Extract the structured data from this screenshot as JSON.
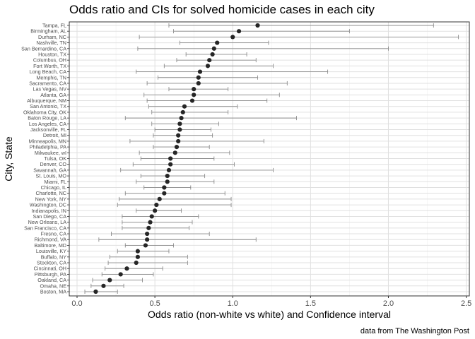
{
  "chart_data": {
    "type": "scatter",
    "title": "Odds ratio and CIs for solved homicide cases in each city",
    "xlabel": "Odds ratio (non-white vs white) and Confidence interval",
    "ylabel": "City, State",
    "caption": "data from The Washington Post",
    "xlim": [
      -0.05,
      2.52
    ],
    "xticks": [
      0.0,
      0.5,
      1.0,
      1.5,
      2.0,
      2.5
    ],
    "xtick_labels": [
      "0.0",
      "0.5",
      "1.0",
      "1.5",
      "2.0",
      "2.5"
    ],
    "grid": true,
    "legend": "none",
    "colors": {
      "point": "#262626",
      "errorbar": "#8c8c8c",
      "grid_major": "#e0e0e0",
      "grid_minor": "#efefef",
      "panel_border": "#333333"
    },
    "cities": [
      {
        "city": "Tampa, FL",
        "estimate": 1.16,
        "lower": 0.59,
        "upper": 2.29
      },
      {
        "city": "Birmingham, AL",
        "estimate": 1.04,
        "lower": 0.62,
        "upper": 1.75
      },
      {
        "city": "Durham, NC",
        "estimate": 1.0,
        "lower": 0.4,
        "upper": 2.45
      },
      {
        "city": "Nashville, TN",
        "estimate": 0.9,
        "lower": 0.66,
        "upper": 1.23
      },
      {
        "city": "San Bernardino, CA",
        "estimate": 0.88,
        "lower": 0.39,
        "upper": 2.0
      },
      {
        "city": "Houston, TX",
        "estimate": 0.87,
        "lower": 0.7,
        "upper": 1.09
      },
      {
        "city": "Columbus, OH",
        "estimate": 0.85,
        "lower": 0.64,
        "upper": 1.15
      },
      {
        "city": "Fort Worth, TX",
        "estimate": 0.84,
        "lower": 0.56,
        "upper": 1.26
      },
      {
        "city": "Long Beach, CA",
        "estimate": 0.79,
        "lower": 0.38,
        "upper": 1.61
      },
      {
        "city": "Memphis, TN",
        "estimate": 0.78,
        "lower": 0.52,
        "upper": 1.16
      },
      {
        "city": "Sacramento, CA",
        "estimate": 0.78,
        "lower": 0.45,
        "upper": 1.35
      },
      {
        "city": "Las Vegas, NV",
        "estimate": 0.75,
        "lower": 0.59,
        "upper": 0.97
      },
      {
        "city": "Atlanta, GA",
        "estimate": 0.75,
        "lower": 0.43,
        "upper": 1.3
      },
      {
        "city": "Albuquerque, NM",
        "estimate": 0.74,
        "lower": 0.45,
        "upper": 1.22
      },
      {
        "city": "San Antonio, TX",
        "estimate": 0.69,
        "lower": 0.46,
        "upper": 1.03
      },
      {
        "city": "Oklahoma City, OK",
        "estimate": 0.68,
        "lower": 0.48,
        "upper": 0.97
      },
      {
        "city": "Baton Rouge, LA",
        "estimate": 0.67,
        "lower": 0.31,
        "upper": 1.41
      },
      {
        "city": "Los Angeles, CA",
        "estimate": 0.66,
        "lower": 0.48,
        "upper": 0.91
      },
      {
        "city": "Jacksonville, FL",
        "estimate": 0.66,
        "lower": 0.5,
        "upper": 0.86
      },
      {
        "city": "Detroit, MI",
        "estimate": 0.65,
        "lower": 0.49,
        "upper": 0.87
      },
      {
        "city": "Minneapolis, MN",
        "estimate": 0.65,
        "lower": 0.34,
        "upper": 1.2
      },
      {
        "city": "Philadelphia, PA",
        "estimate": 0.64,
        "lower": 0.49,
        "upper": 0.85
      },
      {
        "city": "Milwaukee, wI",
        "estimate": 0.63,
        "lower": 0.4,
        "upper": 0.98
      },
      {
        "city": "Tulsa, OK",
        "estimate": 0.6,
        "lower": 0.41,
        "upper": 0.88
      },
      {
        "city": "Denver, CO",
        "estimate": 0.6,
        "lower": 0.36,
        "upper": 1.01
      },
      {
        "city": "Savannah, GA",
        "estimate": 0.59,
        "lower": 0.28,
        "upper": 1.26
      },
      {
        "city": "St. Louis, MO",
        "estimate": 0.58,
        "lower": 0.41,
        "upper": 0.82
      },
      {
        "city": "Miami, FL",
        "estimate": 0.58,
        "lower": 0.38,
        "upper": 0.88
      },
      {
        "city": "Chicago, IL",
        "estimate": 0.56,
        "lower": 0.43,
        "upper": 0.73
      },
      {
        "city": "Charlotte, NC",
        "estimate": 0.56,
        "lower": 0.31,
        "upper": 0.95
      },
      {
        "city": "New York, NY",
        "estimate": 0.53,
        "lower": 0.27,
        "upper": 0.99
      },
      {
        "city": "Washington, DC",
        "estimate": 0.51,
        "lower": 0.26,
        "upper": 0.99
      },
      {
        "city": "Indianapolis, IN",
        "estimate": 0.5,
        "lower": 0.38,
        "upper": 0.67
      },
      {
        "city": "San Diego, CA",
        "estimate": 0.48,
        "lower": 0.29,
        "upper": 0.78
      },
      {
        "city": "New Orleans, LA",
        "estimate": 0.47,
        "lower": 0.29,
        "upper": 0.74
      },
      {
        "city": "San Francisco, CA",
        "estimate": 0.46,
        "lower": 0.29,
        "upper": 0.72
      },
      {
        "city": "Fresno, CA",
        "estimate": 0.45,
        "lower": 0.22,
        "upper": 0.85
      },
      {
        "city": "Richmond, VA",
        "estimate": 0.45,
        "lower": 0.14,
        "upper": 1.15
      },
      {
        "city": "Baltimore, MD",
        "estimate": 0.44,
        "lower": 0.31,
        "upper": 0.62
      },
      {
        "city": "Louisville, KY",
        "estimate": 0.39,
        "lower": 0.26,
        "upper": 0.59
      },
      {
        "city": "Buffalo, NY",
        "estimate": 0.39,
        "lower": 0.21,
        "upper": 0.71
      },
      {
        "city": "Stockton, CA",
        "estimate": 0.38,
        "lower": 0.2,
        "upper": 0.71
      },
      {
        "city": "Cincinnati, OH",
        "estimate": 0.32,
        "lower": 0.18,
        "upper": 0.55
      },
      {
        "city": "Pittsburgh, PA",
        "estimate": 0.28,
        "lower": 0.16,
        "upper": 0.49
      },
      {
        "city": "Oakland, CA",
        "estimate": 0.21,
        "lower": 0.1,
        "upper": 0.42
      },
      {
        "city": "Omaha, NE",
        "estimate": 0.17,
        "lower": 0.09,
        "upper": 0.3
      },
      {
        "city": "Boston, MA",
        "estimate": 0.12,
        "lower": 0.05,
        "upper": 0.26
      }
    ]
  }
}
